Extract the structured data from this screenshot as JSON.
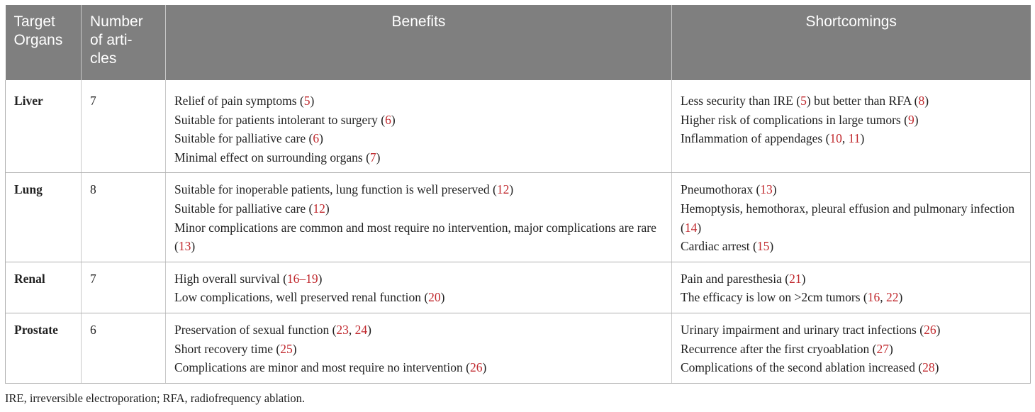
{
  "table": {
    "headers": [
      "Target Organs",
      "Number of arti-cles",
      "Benefits",
      "Shortcomings"
    ],
    "rows": [
      {
        "organ": "Liver",
        "count": "7",
        "benefits": [
          {
            "text": "Relief of pain symptoms (",
            "refs": [
              "5"
            ],
            "close": ")"
          },
          {
            "text": "Suitable for patients intolerant to surgery (",
            "refs": [
              "6"
            ],
            "close": ")"
          },
          {
            "text": "Suitable for palliative care (",
            "refs": [
              "6"
            ],
            "close": ")"
          },
          {
            "text": "Minimal effect on surrounding organs (",
            "refs": [
              "7"
            ],
            "close": ")"
          }
        ],
        "shortcomings": [
          {
            "text": "Less security than IRE (",
            "refs": [
              "5"
            ],
            "close": ") but better than RFA (",
            "refs2": [
              "8"
            ],
            "close2": ")"
          },
          {
            "text": "Higher risk of complications in large tumors (",
            "refs": [
              "9"
            ],
            "close": ")"
          },
          {
            "text": "Inflammation of appendages (",
            "refs": [
              "10",
              "11"
            ],
            "close": ")"
          }
        ]
      },
      {
        "organ": "Lung",
        "count": "8",
        "benefits": [
          {
            "text": "Suitable for inoperable patients, lung function is well preserved (",
            "refs": [
              "12"
            ],
            "close": ")"
          },
          {
            "text": "Suitable for palliative care (",
            "refs": [
              "12"
            ],
            "close": ")"
          },
          {
            "text": "Minor complications are common and most require no intervention, major complications are rare (",
            "refs": [
              "13"
            ],
            "close": ")",
            "wrap": true
          }
        ],
        "shortcomings": [
          {
            "text": "Pneumothorax (",
            "refs": [
              "13"
            ],
            "close": ")"
          },
          {
            "text": "Hemoptysis, hemothorax, pleural effusion and pulmonary infection (",
            "refs": [
              "14"
            ],
            "close": ")",
            "wrap": true
          },
          {
            "text": "Cardiac arrest (",
            "refs": [
              "15"
            ],
            "close": ")"
          }
        ]
      },
      {
        "organ": "Renal",
        "count": "7",
        "benefits": [
          {
            "text": "High overall survival (",
            "refs": [
              "16–19"
            ],
            "close": ")"
          },
          {
            "text": "Low complications, well preserved renal function (",
            "refs": [
              "20"
            ],
            "close": ")"
          }
        ],
        "shortcomings": [
          {
            "text": "Pain and paresthesia (",
            "refs": [
              "21"
            ],
            "close": ")"
          },
          {
            "text": "The efficacy is low on >2cm tumors (",
            "refs": [
              "16",
              "22"
            ],
            "close": ")"
          }
        ]
      },
      {
        "organ": "Prostate",
        "count": "6",
        "benefits": [
          {
            "text": "Preservation of sexual function (",
            "refs": [
              "23",
              "24"
            ],
            "close": ")"
          },
          {
            "text": "Short recovery time (",
            "refs": [
              "25"
            ],
            "close": ")"
          },
          {
            "text": "Complications are minor and most require no intervention (",
            "refs": [
              "26"
            ],
            "close": ")"
          }
        ],
        "shortcomings": [
          {
            "text": "Urinary impairment and urinary tract infections (",
            "refs": [
              "26"
            ],
            "close": ")"
          },
          {
            "text": "Recurrence after the first cryoablation (",
            "refs": [
              "27"
            ],
            "close": ")"
          },
          {
            "text": "Complications of the second ablation increased (",
            "refs": [
              "28"
            ],
            "close": ")"
          }
        ]
      }
    ]
  },
  "footnote": "IRE, irreversible electroporation; RFA, radiofrequency ablation.",
  "colors": {
    "header_bg": "#7f7f7f",
    "ref_link": "#c0282d",
    "border": "#b0b0b0"
  }
}
